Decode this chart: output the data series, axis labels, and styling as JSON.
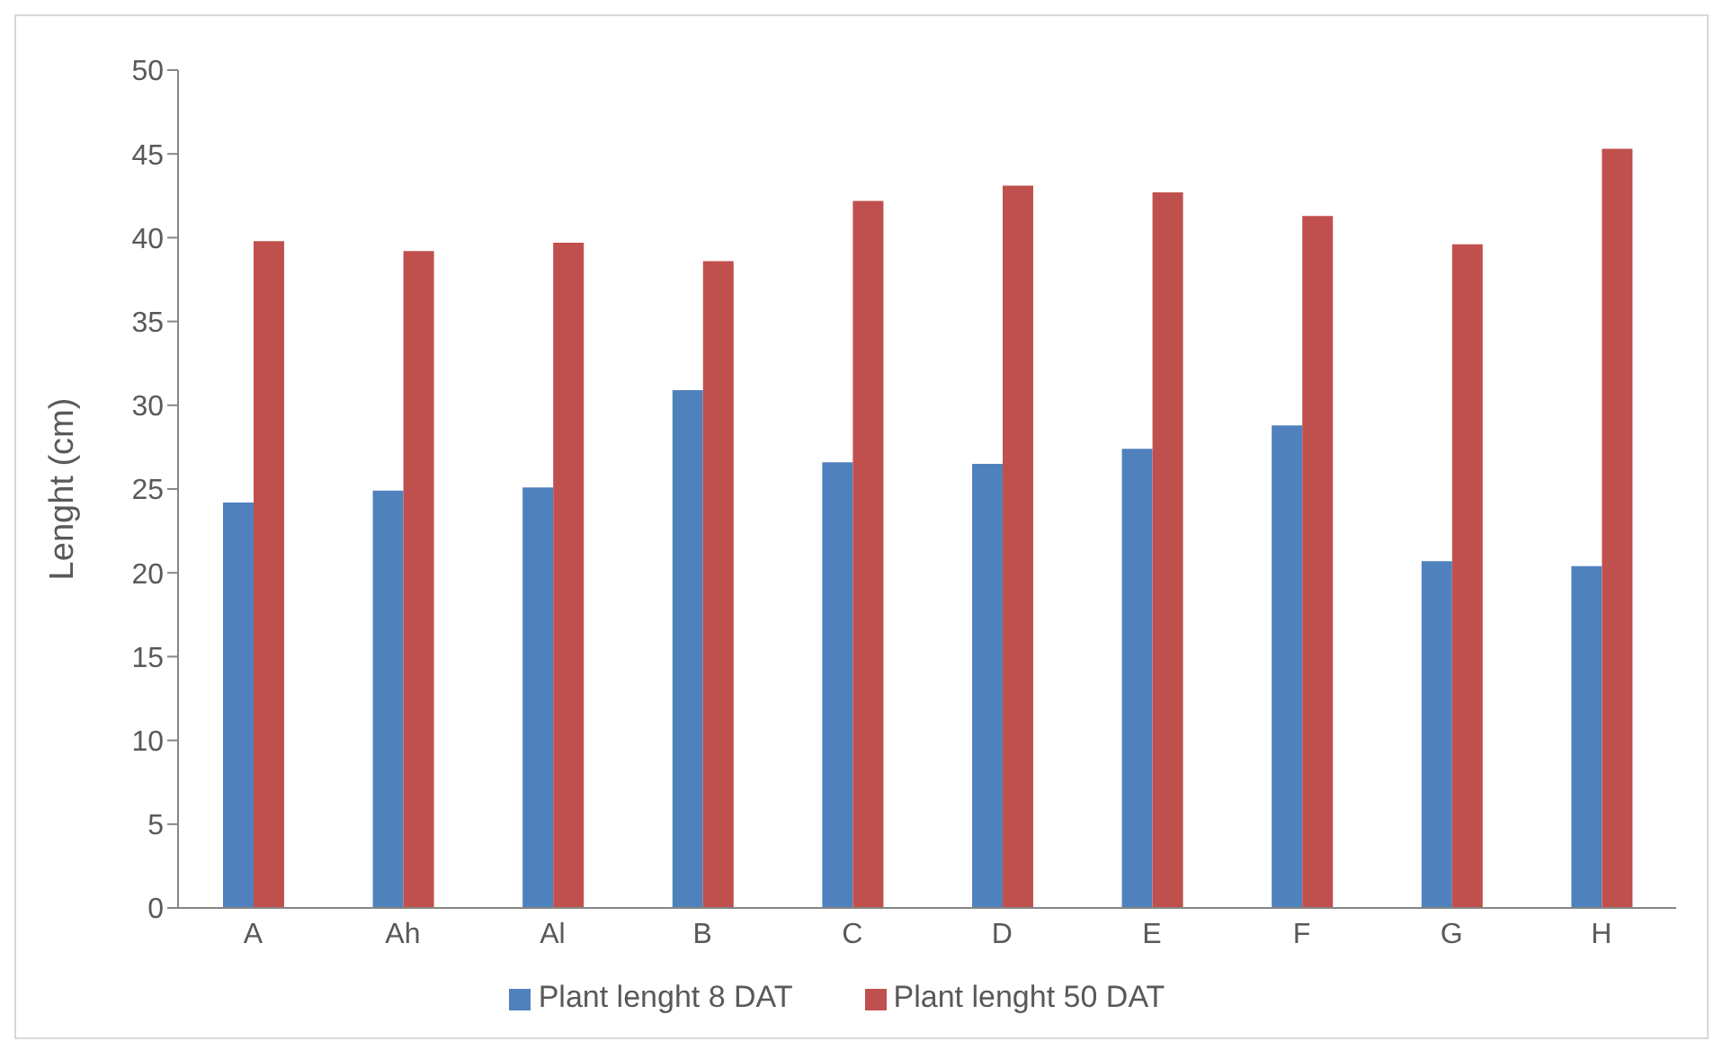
{
  "chart_data": {
    "type": "bar",
    "ylabel": "Lenght (cm)",
    "categories": [
      "A",
      "Ah",
      "Al",
      "B",
      "C",
      "D",
      "E",
      "F",
      "G",
      "H"
    ],
    "series": [
      {
        "name": "Plant lenght 8 DAT",
        "color": "#4f81bd",
        "values": [
          24.2,
          24.9,
          25.1,
          30.9,
          26.6,
          26.5,
          27.4,
          28.8,
          20.7,
          20.4
        ]
      },
      {
        "name": "Plant lenght 50 DAT",
        "color": "#c0504d",
        "values": [
          39.8,
          39.2,
          39.7,
          38.6,
          42.2,
          43.1,
          42.7,
          41.3,
          39.6,
          45.3
        ]
      }
    ],
    "ylim": [
      0,
      50
    ],
    "yticks": [
      0,
      5,
      10,
      15,
      20,
      25,
      30,
      35,
      40,
      45,
      50
    ],
    "grid": false,
    "legend": "bottom"
  }
}
